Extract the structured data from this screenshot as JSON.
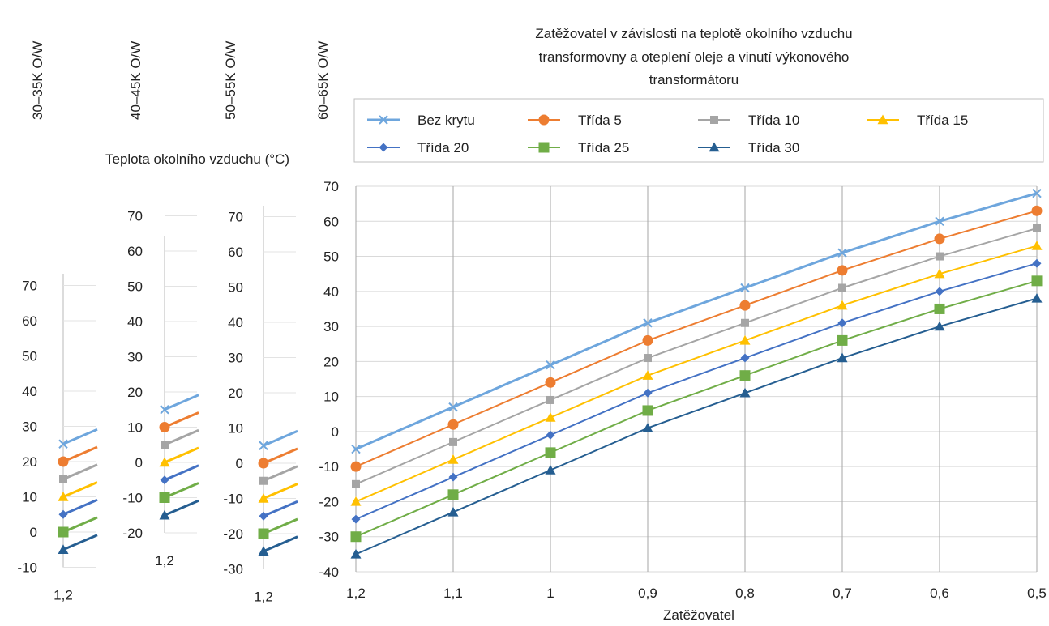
{
  "chart_data": {
    "type": "line",
    "title": "Zatěžovatel v závislosti na teplotě okolního vzduchu transformovny a oteplení oleje a vinutí výkonového transformátoru",
    "title_lines": [
      "Zatěžovatel v závislosti na teplotě okolního vzduchu",
      "transformovny a oteplení oleje a vinutí výkonového",
      "transformátoru"
    ],
    "xlabel": "Zatěžovatel",
    "ylabel": "Teplota okolního vzduchu  (°C)",
    "legend_position": "top",
    "grid": true,
    "x": [
      1.2,
      1.1,
      1.0,
      0.9,
      0.8,
      0.7,
      0.6,
      0.5
    ],
    "x_tick_labels": [
      "1,2",
      "1,1",
      "1",
      "0,9",
      "0,8",
      "0,7",
      "0,6",
      "0,5"
    ],
    "series": [
      {
        "name": "Bez krytu",
        "color": "#6ea6dd",
        "marker": "x",
        "values": [
          -5,
          7,
          19,
          31,
          41,
          51,
          60,
          68
        ]
      },
      {
        "name": "Třída 5",
        "color": "#ed7d31",
        "marker": "circle",
        "values": [
          -10,
          2,
          14,
          26,
          36,
          46,
          55,
          63
        ]
      },
      {
        "name": "Třída 10",
        "color": "#a5a5a5",
        "marker": "square-sm",
        "values": [
          -15,
          -3,
          9,
          21,
          31,
          41,
          50,
          58
        ]
      },
      {
        "name": "Třída 15",
        "color": "#ffc000",
        "marker": "triangle",
        "values": [
          -20,
          -8,
          4,
          16,
          26,
          36,
          45,
          53
        ]
      },
      {
        "name": "Třída 20",
        "color": "#4472c4",
        "marker": "diamond",
        "values": [
          -25,
          -13,
          -1,
          11,
          21,
          31,
          40,
          48
        ]
      },
      {
        "name": "Třída 25",
        "color": "#70ad47",
        "marker": "square",
        "values": [
          -30,
          -18,
          -6,
          6,
          16,
          26,
          35,
          43
        ]
      },
      {
        "name": "Třída 30",
        "color": "#255e91",
        "marker": "triangle",
        "values": [
          -35,
          -23,
          -11,
          1,
          11,
          21,
          30,
          38
        ]
      }
    ],
    "main_axis": {
      "ylim": [
        -40,
        70
      ],
      "ticks": [
        "70",
        "60",
        "50",
        "40",
        "30",
        "20",
        "10",
        "0",
        "-10",
        "-20",
        "-30",
        "-40"
      ]
    },
    "side_axes": [
      {
        "label": "30–35K O/W",
        "ticks": [
          "70",
          "60",
          "50",
          "40",
          "30",
          "20",
          "10",
          "0",
          "-10"
        ],
        "x_tick": "1,2"
      },
      {
        "label": "40–45K O/W",
        "ticks": [
          "70",
          "60",
          "50",
          "40",
          "30",
          "20",
          "10",
          "0",
          "-10",
          "-20"
        ],
        "x_tick": "1,2"
      },
      {
        "label": "50–55K O/W",
        "ticks": [
          "70",
          "60",
          "50",
          "40",
          "30",
          "20",
          "10",
          "0",
          "-10",
          "-20",
          "-30"
        ],
        "x_tick": "1,2"
      },
      {
        "label": "60–65K O/W",
        "ticks": [],
        "x_tick": "1,2"
      }
    ]
  }
}
